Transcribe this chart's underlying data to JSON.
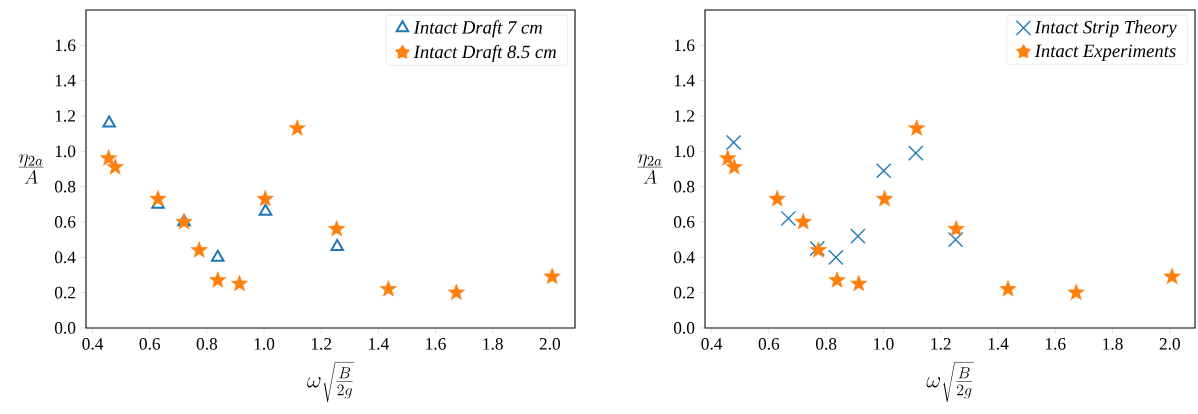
{
  "chart_data": [
    {
      "type": "scatter",
      "xlabel": "\\omega\\sqrt{\\frac{B}{2g}}",
      "ylabel": "\\frac{\\eta_{2a}}{A}",
      "xlim": [
        0.377,
        2.088
      ],
      "ylim": [
        0,
        1.8
      ],
      "xticks": [
        {
          "value": 0.4,
          "label": "0.4"
        },
        {
          "value": 0.6,
          "label": "0.6"
        },
        {
          "value": 0.8,
          "label": "0.8"
        },
        {
          "value": 1.0,
          "label": "1.0"
        },
        {
          "value": 1.2,
          "label": "1.2"
        },
        {
          "value": 1.4,
          "label": "1.4"
        },
        {
          "value": 1.6,
          "label": "1.6"
        },
        {
          "value": 1.8,
          "label": "1.8"
        },
        {
          "value": 2.0,
          "label": "2.0"
        }
      ],
      "yticks": [
        {
          "value": 0,
          "label": "0.0"
        },
        {
          "value": 0.2,
          "label": "0.2"
        },
        {
          "value": 0.4,
          "label": "0.4"
        },
        {
          "value": 0.6,
          "label": "0.6"
        },
        {
          "value": 0.8,
          "label": "0.8"
        },
        {
          "value": 1.0,
          "label": "1.0"
        },
        {
          "value": 1.2,
          "label": "1.2"
        },
        {
          "value": 1.4,
          "label": "1.4"
        },
        {
          "value": 1.6,
          "label": "1.6"
        }
      ],
      "legend": "top right",
      "series": [
        {
          "name": "Intact Draft 7 cm",
          "color": "#1f77b4",
          "marker": "triangle",
          "x": [
            0.458,
            0.629,
            0.72,
            0.838,
            1.005,
            1.256
          ],
          "values": [
            1.16,
            0.7,
            0.6,
            0.4,
            0.66,
            0.46
          ]
        },
        {
          "name": "Intact Draft 8.5 cm",
          "color": "#ff7f0e",
          "marker": "star",
          "x": [
            0.456,
            0.479,
            0.629,
            0.72,
            0.773,
            0.838,
            0.914,
            1.004,
            1.116,
            1.254,
            1.435,
            1.673,
            2.008
          ],
          "values": [
            0.96,
            0.91,
            0.73,
            0.6,
            0.44,
            0.27,
            0.25,
            0.73,
            1.13,
            0.56,
            0.22,
            0.2,
            0.29
          ]
        }
      ]
    },
    {
      "type": "scatter",
      "xlabel": "\\omega\\sqrt{\\frac{B}{2g}}",
      "ylabel": "\\frac{\\eta_{2a}}{A}",
      "xlim": [
        0.377,
        2.088
      ],
      "ylim": [
        0,
        1.8
      ],
      "xticks": [
        {
          "value": 0.4,
          "label": "0.4"
        },
        {
          "value": 0.6,
          "label": "0.6"
        },
        {
          "value": 0.8,
          "label": "0.8"
        },
        {
          "value": 1.0,
          "label": "1.0"
        },
        {
          "value": 1.2,
          "label": "1.2"
        },
        {
          "value": 1.4,
          "label": "1.4"
        },
        {
          "value": 1.6,
          "label": "1.6"
        },
        {
          "value": 1.8,
          "label": "1.8"
        },
        {
          "value": 2.0,
          "label": "2.0"
        }
      ],
      "yticks": [
        {
          "value": 0,
          "label": "0.0"
        },
        {
          "value": 0.2,
          "label": "0.2"
        },
        {
          "value": 0.4,
          "label": "0.4"
        },
        {
          "value": 0.6,
          "label": "0.6"
        },
        {
          "value": 0.8,
          "label": "0.8"
        },
        {
          "value": 1.0,
          "label": "1.0"
        },
        {
          "value": 1.2,
          "label": "1.2"
        },
        {
          "value": 1.4,
          "label": "1.4"
        },
        {
          "value": 1.6,
          "label": "1.6"
        }
      ],
      "legend": "top right",
      "series": [
        {
          "name": "Intact Strip Theory",
          "color": "#1f77b4",
          "marker": "cross",
          "x": [
            0.477,
            0.668,
            0.769,
            0.834,
            0.911,
            1.001,
            1.113,
            1.252
          ],
          "values": [
            1.05,
            0.62,
            0.45,
            0.4,
            0.52,
            0.89,
            0.99,
            0.5
          ]
        },
        {
          "name": "Intact Experiments",
          "color": "#ff7f0e",
          "marker": "star",
          "x": [
            0.456,
            0.479,
            0.629,
            0.72,
            0.773,
            0.838,
            0.914,
            1.004,
            1.116,
            1.254,
            1.435,
            1.673,
            2.008
          ],
          "values": [
            0.96,
            0.91,
            0.73,
            0.6,
            0.44,
            0.27,
            0.25,
            0.73,
            1.13,
            0.56,
            0.22,
            0.2,
            0.29
          ]
        }
      ]
    }
  ]
}
